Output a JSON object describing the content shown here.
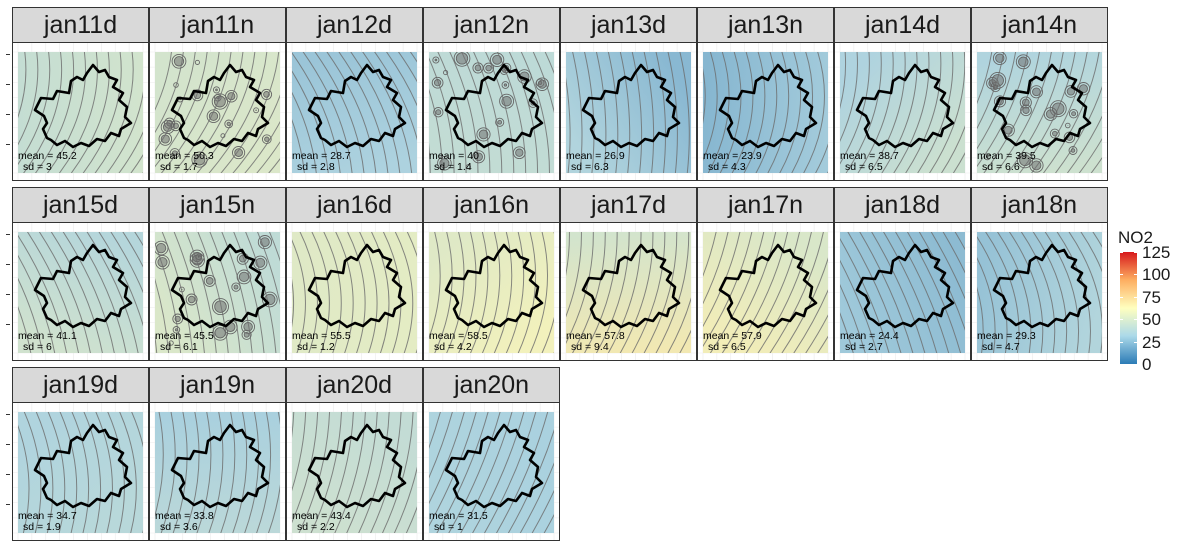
{
  "chart_data": {
    "type": "heatmap",
    "title": "",
    "xlabel": "",
    "ylabel": "",
    "facets": [
      {
        "label": "jan11d",
        "mean_text": "mean = 45.2",
        "sd_text": "sd = 3",
        "mean": 45.2,
        "sd": 3,
        "contour_style": "smooth"
      },
      {
        "label": "jan11n",
        "mean_text": "mean = 50.3",
        "sd_text": "sd = 1.7",
        "mean": 50.3,
        "sd": 1.7,
        "contour_style": "spotty"
      },
      {
        "label": "jan12d",
        "mean_text": "mean = 28.7",
        "sd_text": "sd = 2.8",
        "mean": 28.7,
        "sd": 2.8,
        "contour_style": "smooth"
      },
      {
        "label": "jan12n",
        "mean_text": "mean = 40",
        "sd_text": "sd = 1.4",
        "mean": 40,
        "sd": 1.4,
        "contour_style": "spotty"
      },
      {
        "label": "jan13d",
        "mean_text": "mean = 26.9",
        "sd_text": "sd = 6.3",
        "mean": 26.9,
        "sd": 6.3,
        "contour_style": "smooth"
      },
      {
        "label": "jan13n",
        "mean_text": "mean = 23.9",
        "sd_text": "sd = 4.3",
        "mean": 23.9,
        "sd": 4.3,
        "contour_style": "smooth"
      },
      {
        "label": "jan14d",
        "mean_text": "mean = 38.7",
        "sd_text": "sd = 6.5",
        "mean": 38.7,
        "sd": 6.5,
        "contour_style": "smooth"
      },
      {
        "label": "jan14n",
        "mean_text": "mean = 39.5",
        "sd_text": "sd = 6.6",
        "mean": 39.5,
        "sd": 6.6,
        "contour_style": "spotty"
      },
      {
        "label": "jan15d",
        "mean_text": "mean = 41.1",
        "sd_text": "sd = 6",
        "mean": 41.1,
        "sd": 6,
        "contour_style": "smooth"
      },
      {
        "label": "jan15n",
        "mean_text": "mean = 45.5",
        "sd_text": "sd = 6.1",
        "mean": 45.5,
        "sd": 6.1,
        "contour_style": "spotty"
      },
      {
        "label": "jan16d",
        "mean_text": "mean = 55.5",
        "sd_text": "sd = 1.2",
        "mean": 55.5,
        "sd": 1.2,
        "contour_style": "smooth"
      },
      {
        "label": "jan16n",
        "mean_text": "mean = 58.5",
        "sd_text": "sd = 4.2",
        "mean": 58.5,
        "sd": 4.2,
        "contour_style": "smooth"
      },
      {
        "label": "jan17d",
        "mean_text": "mean = 57.8",
        "sd_text": "sd = 9.4",
        "mean": 57.8,
        "sd": 9.4,
        "contour_style": "smooth"
      },
      {
        "label": "jan17n",
        "mean_text": "mean = 57.9",
        "sd_text": "sd = 6.5",
        "mean": 57.9,
        "sd": 6.5,
        "contour_style": "smooth"
      },
      {
        "label": "jan18d",
        "mean_text": "mean = 24.4",
        "sd_text": "sd = 2.7",
        "mean": 24.4,
        "sd": 2.7,
        "contour_style": "smooth"
      },
      {
        "label": "jan18n",
        "mean_text": "mean = 29.3",
        "sd_text": "sd = 4.7",
        "mean": 29.3,
        "sd": 4.7,
        "contour_style": "smooth"
      },
      {
        "label": "jan19d",
        "mean_text": "mean = 34.7",
        "sd_text": "sd = 1.9",
        "mean": 34.7,
        "sd": 1.9,
        "contour_style": "smooth"
      },
      {
        "label": "jan19n",
        "mean_text": "mean = 33.8",
        "sd_text": "sd = 3.6",
        "mean": 33.8,
        "sd": 3.6,
        "contour_style": "smooth"
      },
      {
        "label": "jan20d",
        "mean_text": "mean = 43.4",
        "sd_text": "sd = 2.2",
        "mean": 43.4,
        "sd": 2.2,
        "contour_style": "smooth"
      },
      {
        "label": "jan20n",
        "mean_text": "mean = 31.5",
        "sd_text": "sd = 1",
        "mean": 31.5,
        "sd": 1,
        "contour_style": "smooth"
      }
    ],
    "legend": {
      "title": "NO2",
      "breaks": [
        "125",
        "100",
        "75",
        "50",
        "25",
        "0"
      ],
      "range": [
        0,
        125
      ],
      "colors": [
        "#2c7bb6",
        "#abd9e9",
        "#ffffbf",
        "#fdae61",
        "#d7191c"
      ]
    },
    "grid": true
  }
}
